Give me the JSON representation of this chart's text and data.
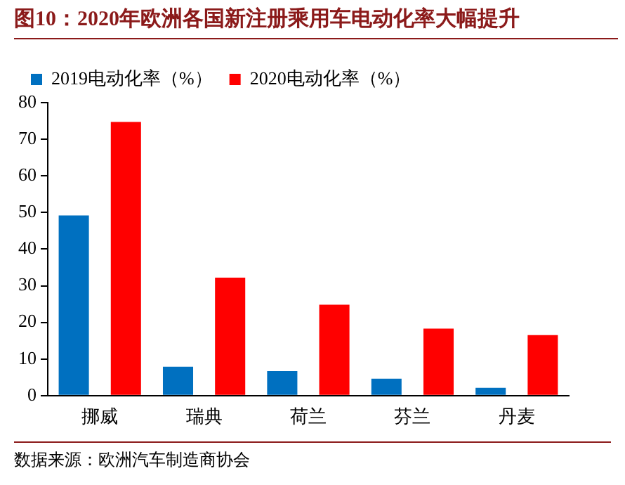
{
  "chart_data": {
    "type": "bar",
    "title": "图10：2020年欧洲各国新注册乘用车电动化率大幅提升",
    "categories": [
      "挪威",
      "瑞典",
      "荷兰",
      "芬兰",
      "丹麦"
    ],
    "series": [
      {
        "name": "2019电动化率（%）",
        "color": "#0070c0",
        "values": [
          49.2,
          7.9,
          6.7,
          4.6,
          2.1
        ]
      },
      {
        "name": "2020电动化率（%）",
        "color": "#ff0000",
        "values": [
          74.7,
          32.2,
          24.8,
          18.3,
          16.5
        ]
      }
    ],
    "ylim": [
      0,
      80
    ],
    "yticks": [
      0,
      10,
      20,
      30,
      40,
      50,
      60,
      70,
      80
    ],
    "grid": false,
    "legend": "top left",
    "annotations": [
      "数据来源：欧洲汽车制造商协会"
    ]
  }
}
